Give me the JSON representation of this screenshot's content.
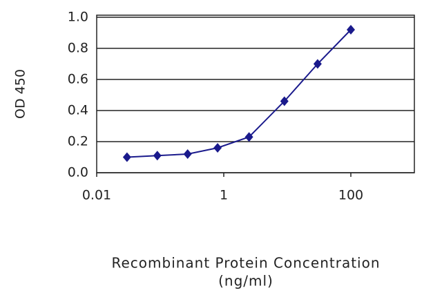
{
  "chart_data": {
    "type": "line",
    "x_label": "Recombinant Protein Concentration",
    "x_label_unit": "(ng/ml)",
    "y_label": "OD 450",
    "x": [
      0.03,
      0.09,
      0.27,
      0.8,
      2.5,
      9,
      30,
      100
    ],
    "series": [
      {
        "color": "#1a1a8c",
        "values": [
          0.1,
          0.11,
          0.12,
          0.16,
          0.23,
          0.46,
          0.7,
          0.92
        ]
      }
    ],
    "xlim": [
      0.01,
      1000
    ],
    "xticks": [
      0.01,
      1,
      100
    ],
    "xscale": "log",
    "ylim": [
      0,
      1
    ],
    "yticks": [
      {
        "value": 0,
        "label": "0.0"
      },
      0.2,
      0.4,
      0.6,
      0.8,
      {
        "value": 1,
        "label": "1.0"
      }
    ],
    "grid": true
  }
}
